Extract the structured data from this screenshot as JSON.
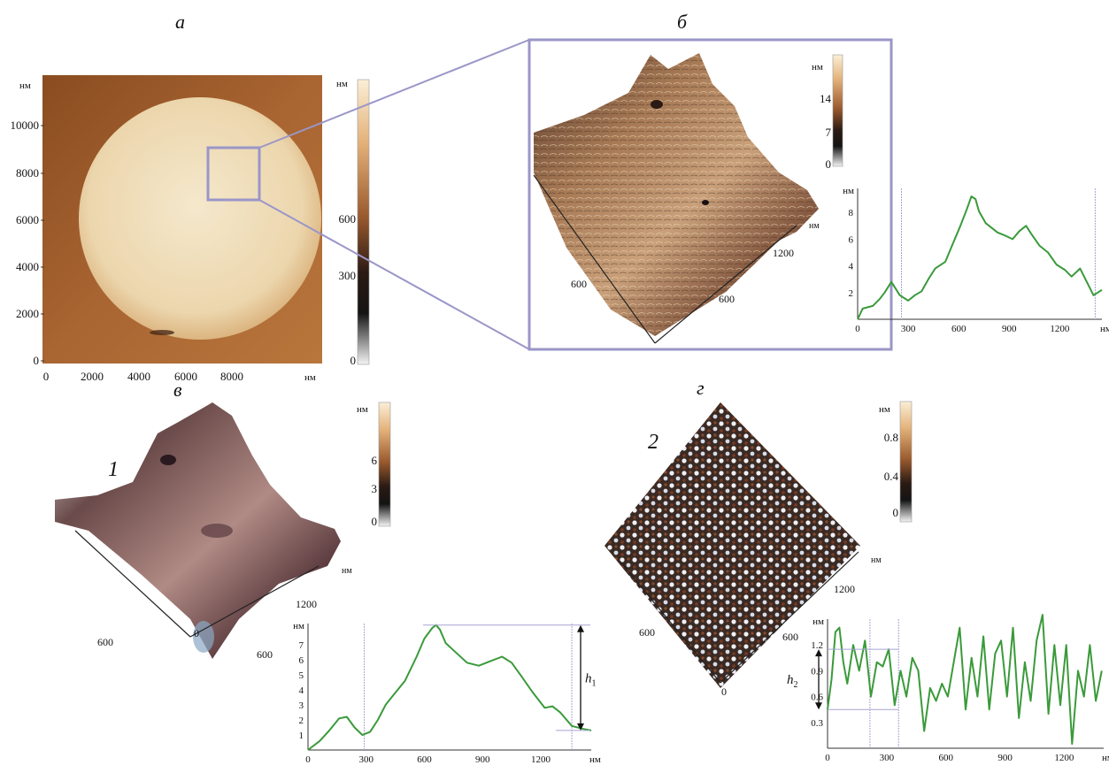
{
  "panel_letters": {
    "a": "а",
    "b": "б",
    "c": "в",
    "d": "г"
  },
  "sample_labels": {
    "one": "1",
    "two": "2"
  },
  "unit": "нм",
  "colors": {
    "frame": "#9a96c8",
    "profile": "#3a9a3a",
    "marker": "#a8a4d4"
  },
  "panel_a": {
    "y_ticks": [
      "10000",
      "8000",
      "6000",
      "4000",
      "2000",
      "0"
    ],
    "x_ticks": [
      "0",
      "2000",
      "4000",
      "6000",
      "8000"
    ],
    "scale_ticks": [
      "600",
      "300",
      "0"
    ]
  },
  "panel_b": {
    "scale_ticks": [
      "14",
      "7",
      "0"
    ],
    "axis_ticks_right": [
      "1200"
    ],
    "axis_ticks_left": [
      "600",
      "600"
    ]
  },
  "panel_c": {
    "scale_ticks": [
      "6",
      "3",
      "0"
    ],
    "axis_ticks": [
      "1200",
      "600",
      "600",
      "0"
    ]
  },
  "panel_d": {
    "scale_ticks": [
      "0.8",
      "0.4",
      "0"
    ],
    "axis_ticks": [
      "1200",
      "600",
      "600",
      "0"
    ]
  },
  "chart_data": [
    {
      "type": "line",
      "panel": "б",
      "ylabel": "нм",
      "xlabel": "нм",
      "x_ticks": [
        "0",
        "300",
        "600",
        "900",
        "1200"
      ],
      "y_ticks": [
        "2",
        "4",
        "6",
        "8"
      ],
      "xlim": [
        0,
        1450
      ],
      "ylim": [
        0,
        9.8
      ],
      "markers_x": [
        260,
        1410
      ],
      "x": [
        0,
        30,
        90,
        130,
        160,
        200,
        250,
        300,
        340,
        380,
        420,
        460,
        520,
        560,
        610,
        650,
        675,
        700,
        720,
        760,
        800,
        830,
        870,
        920,
        960,
        1000,
        1030,
        1080,
        1130,
        1180,
        1230,
        1270,
        1320,
        1360,
        1400,
        1450
      ],
      "y": [
        0,
        0.8,
        1.0,
        1.5,
        2.0,
        2.8,
        1.8,
        1.4,
        1.8,
        2.1,
        3.0,
        3.8,
        4.3,
        5.5,
        7.0,
        8.3,
        9.2,
        9.0,
        8.1,
        7.2,
        6.8,
        6.5,
        6.3,
        6.0,
        6.6,
        7.0,
        6.4,
        5.5,
        5.0,
        4.1,
        3.7,
        3.2,
        3.8,
        2.8,
        1.8,
        2.2
      ]
    },
    {
      "type": "line",
      "panel": "в",
      "ylabel": "нм",
      "xlabel": "нм",
      "x_ticks": [
        "0",
        "300",
        "600",
        "900",
        "1200"
      ],
      "y_ticks": [
        "1",
        "2",
        "3",
        "4",
        "5",
        "6",
        "7"
      ],
      "xlim": [
        0,
        1460
      ],
      "ylim": [
        0,
        8.4
      ],
      "markers_x": [
        290,
        1360
      ],
      "annotation": "h",
      "annotation_sub": "1",
      "x": [
        0,
        60,
        110,
        160,
        200,
        240,
        280,
        320,
        360,
        400,
        450,
        500,
        560,
        600,
        640,
        660,
        680,
        710,
        760,
        820,
        880,
        940,
        1000,
        1050,
        1100,
        1160,
        1220,
        1260,
        1300,
        1360,
        1420,
        1460
      ],
      "y": [
        0,
        0.6,
        1.3,
        2.1,
        2.2,
        1.5,
        1.0,
        1.2,
        2.0,
        3.0,
        3.8,
        4.6,
        6.2,
        7.4,
        8.1,
        8.3,
        8.0,
        7.1,
        6.5,
        5.8,
        5.6,
        5.9,
        6.2,
        5.8,
        4.9,
        3.8,
        2.8,
        2.9,
        2.5,
        1.6,
        1.4,
        1.3
      ]
    },
    {
      "type": "line",
      "panel": "г",
      "ylabel": "нм",
      "xlabel": "нм",
      "x_ticks": [
        "0",
        "300",
        "600",
        "900",
        "1200"
      ],
      "y_ticks": [
        "0.3",
        "0.6",
        "0.9",
        "1.2"
      ],
      "xlim": [
        0,
        1400
      ],
      "ylim": [
        0,
        1.5
      ],
      "markers_x": [
        215,
        360
      ],
      "annotation": "h",
      "annotation_sub": "2",
      "x": [
        0,
        20,
        40,
        60,
        80,
        100,
        130,
        160,
        190,
        220,
        250,
        280,
        310,
        340,
        370,
        400,
        430,
        460,
        490,
        520,
        550,
        580,
        610,
        640,
        670,
        700,
        730,
        760,
        790,
        820,
        850,
        880,
        910,
        940,
        970,
        1000,
        1030,
        1060,
        1090,
        1120,
        1150,
        1180,
        1210,
        1240,
        1270,
        1300,
        1330,
        1360,
        1390
      ],
      "y": [
        0.45,
        0.8,
        1.35,
        1.4,
        1.0,
        0.75,
        1.2,
        0.9,
        1.25,
        0.6,
        1.0,
        0.95,
        1.15,
        0.5,
        0.9,
        0.6,
        1.05,
        0.9,
        0.2,
        0.7,
        0.55,
        0.75,
        0.6,
        1.0,
        1.4,
        0.45,
        1.05,
        0.6,
        1.3,
        0.45,
        1.1,
        1.25,
        0.6,
        1.4,
        0.35,
        1.0,
        0.55,
        1.25,
        1.55,
        0.4,
        1.2,
        0.5,
        1.2,
        0.05,
        0.9,
        0.6,
        1.2,
        0.55,
        0.9
      ]
    }
  ]
}
